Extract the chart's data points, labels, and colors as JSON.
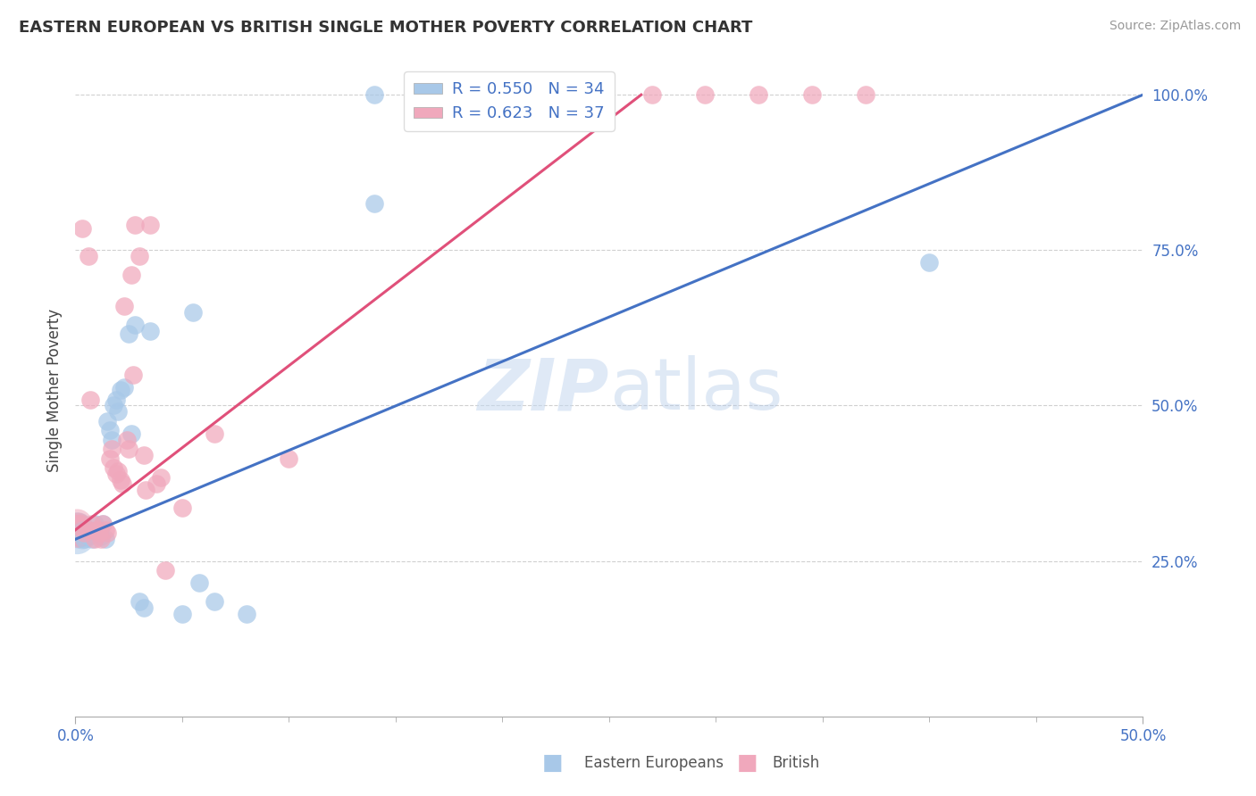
{
  "title": "EASTERN EUROPEAN VS BRITISH SINGLE MOTHER POVERTY CORRELATION CHART",
  "source": "Source: ZipAtlas.com",
  "ylabel": "Single Mother Poverty",
  "xlim": [
    0.0,
    0.5
  ],
  "ylim": [
    0.0,
    1.05
  ],
  "x_ticks": [
    0.0,
    0.5
  ],
  "x_tick_labels": [
    "0.0%",
    "50.0%"
  ],
  "y_ticks": [
    0.25,
    0.5,
    0.75,
    1.0
  ],
  "y_tick_labels": [
    "25.0%",
    "50.0%",
    "75.0%",
    "100.0%"
  ],
  "r_eastern": 0.55,
  "n_eastern": 34,
  "r_british": 0.623,
  "n_british": 37,
  "eastern_color": "#a8c8e8",
  "british_color": "#f0a8bc",
  "eastern_line_color": "#4472c4",
  "british_line_color": "#e0507a",
  "watermark_zip": "ZIP",
  "watermark_atlas": "atlas",
  "legend_label_eastern": "Eastern Europeans",
  "legend_label_british": "British",
  "eastern_points": [
    [
      0.002,
      0.295
    ],
    [
      0.003,
      0.3
    ],
    [
      0.004,
      0.285
    ],
    [
      0.005,
      0.3
    ],
    [
      0.006,
      0.29
    ],
    [
      0.007,
      0.295
    ],
    [
      0.008,
      0.285
    ],
    [
      0.009,
      0.31
    ],
    [
      0.01,
      0.3
    ],
    [
      0.011,
      0.295
    ],
    [
      0.012,
      0.29
    ],
    [
      0.013,
      0.31
    ],
    [
      0.014,
      0.285
    ],
    [
      0.015,
      0.475
    ],
    [
      0.016,
      0.46
    ],
    [
      0.017,
      0.445
    ],
    [
      0.018,
      0.5
    ],
    [
      0.019,
      0.51
    ],
    [
      0.021,
      0.525
    ],
    [
      0.023,
      0.53
    ],
    [
      0.025,
      0.615
    ],
    [
      0.026,
      0.455
    ],
    [
      0.028,
      0.63
    ],
    [
      0.03,
      0.185
    ],
    [
      0.032,
      0.175
    ],
    [
      0.05,
      0.165
    ],
    [
      0.055,
      0.65
    ],
    [
      0.058,
      0.215
    ],
    [
      0.065,
      0.185
    ],
    [
      0.08,
      0.165
    ],
    [
      0.14,
      0.825
    ],
    [
      0.4,
      0.73
    ],
    [
      0.035,
      0.62
    ],
    [
      0.02,
      0.49
    ]
  ],
  "british_points": [
    [
      0.002,
      0.305
    ],
    [
      0.004,
      0.295
    ],
    [
      0.006,
      0.3
    ],
    [
      0.008,
      0.31
    ],
    [
      0.009,
      0.285
    ],
    [
      0.01,
      0.3
    ],
    [
      0.011,
      0.295
    ],
    [
      0.012,
      0.285
    ],
    [
      0.013,
      0.31
    ],
    [
      0.014,
      0.3
    ],
    [
      0.015,
      0.295
    ],
    [
      0.016,
      0.415
    ],
    [
      0.017,
      0.43
    ],
    [
      0.018,
      0.4
    ],
    [
      0.019,
      0.39
    ],
    [
      0.02,
      0.395
    ],
    [
      0.021,
      0.38
    ],
    [
      0.022,
      0.375
    ],
    [
      0.023,
      0.66
    ],
    [
      0.024,
      0.445
    ],
    [
      0.025,
      0.43
    ],
    [
      0.026,
      0.71
    ],
    [
      0.027,
      0.55
    ],
    [
      0.028,
      0.79
    ],
    [
      0.03,
      0.74
    ],
    [
      0.032,
      0.42
    ],
    [
      0.033,
      0.365
    ],
    [
      0.035,
      0.79
    ],
    [
      0.038,
      0.375
    ],
    [
      0.04,
      0.385
    ],
    [
      0.042,
      0.235
    ],
    [
      0.05,
      0.335
    ],
    [
      0.065,
      0.455
    ],
    [
      0.1,
      0.415
    ],
    [
      0.006,
      0.74
    ],
    [
      0.003,
      0.785
    ],
    [
      0.007,
      0.51
    ]
  ],
  "origin_cluster_eastern": {
    "x": [
      0.0005,
      0.001,
      0.0015,
      0.002,
      0.0025,
      0.003,
      0.0035,
      0.004,
      0.0005,
      0.001,
      0.0015
    ],
    "y": [
      0.29,
      0.295,
      0.298,
      0.292,
      0.296,
      0.288,
      0.293,
      0.291,
      0.302,
      0.305,
      0.3
    ],
    "size": [
      800,
      600,
      500,
      400,
      400,
      350,
      300,
      300,
      700,
      500,
      400
    ]
  },
  "origin_cluster_british": {
    "x": [
      0.0005,
      0.001,
      0.0015,
      0.002,
      0.0025,
      0.003,
      0.0005,
      0.001,
      0.0015
    ],
    "y": [
      0.298,
      0.302,
      0.295,
      0.305,
      0.292,
      0.3,
      0.31,
      0.308,
      0.298
    ],
    "size": [
      700,
      500,
      450,
      400,
      350,
      350,
      600,
      400,
      350
    ]
  },
  "top_cluster_eastern_x": [
    0.14
  ],
  "top_cluster_british_x": [
    0.18,
    0.215,
    0.245,
    0.27,
    0.295,
    0.32,
    0.345,
    0.37
  ],
  "blue_line_x": [
    0.0,
    0.5
  ],
  "blue_line_y": [
    0.285,
    1.0
  ],
  "pink_line_x": [
    0.0,
    0.265
  ],
  "pink_line_y": [
    0.3,
    1.0
  ]
}
